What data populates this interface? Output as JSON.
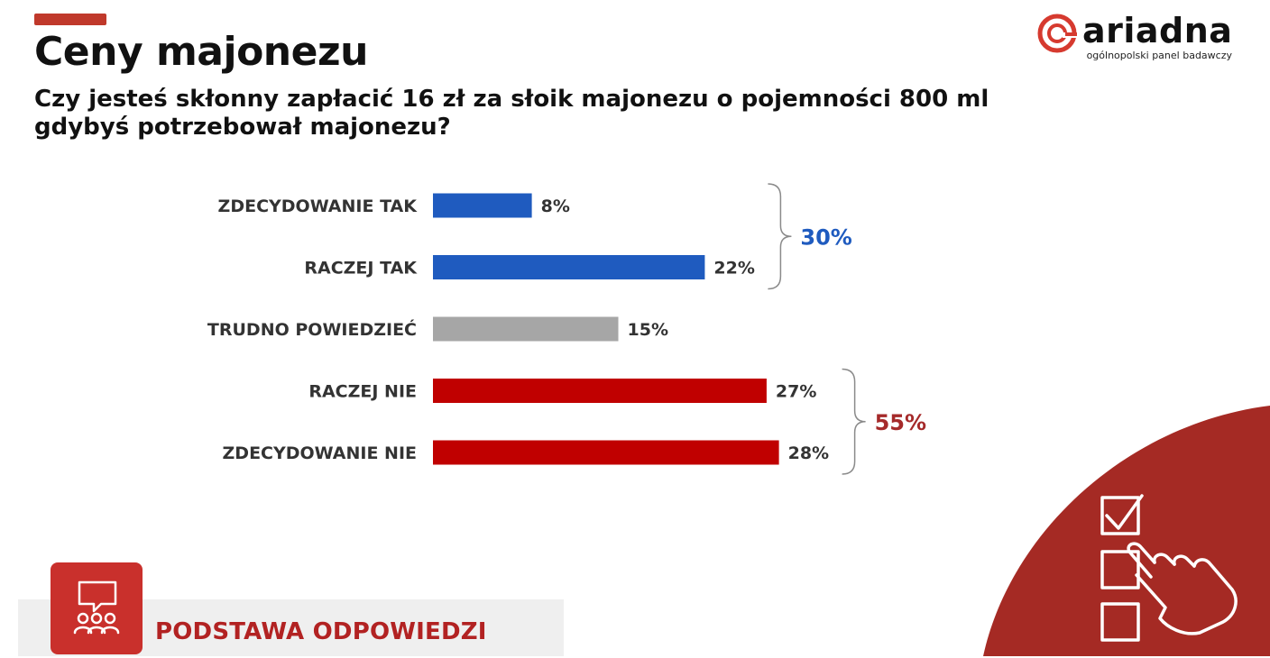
{
  "title": "Ceny majonezu",
  "question": "Czy jesteś skłonny zapłacić 16 zł za słoik majonezu o pojemności 800 ml gdybyś potrzebował majonezu?",
  "logo": {
    "brand": "ariadna",
    "tagline": "ogólnopolski panel badawczy"
  },
  "footer": {
    "label": "PODSTAWA ODPOWIEDZI"
  },
  "chart_data": {
    "type": "bar",
    "orientation": "horizontal",
    "categories": [
      "ZDECYDOWANIE TAK",
      "RACZEJ TAK",
      "TRUDNO POWIEDZIEĆ",
      "RACZEJ NIE",
      "ZDECYDOWANIE NIE"
    ],
    "values": [
      8,
      22,
      15,
      27,
      28
    ],
    "value_labels": [
      "8%",
      "22%",
      "15%",
      "27%",
      "28%"
    ],
    "colors": [
      "#1f5bbf",
      "#1f5bbf",
      "#a6a6a6",
      "#c00000",
      "#c00000"
    ],
    "xlim": [
      0,
      100
    ],
    "unit": "%",
    "groups": [
      {
        "label": "30%",
        "members": [
          0,
          1
        ],
        "color": "#1f5bbf"
      },
      {
        "label": "55%",
        "members": [
          3,
          4
        ],
        "color": "#a52a2a"
      }
    ],
    "colors_theme": {
      "accent": "#c0392b",
      "corner": "#a52a24",
      "label": "#333333"
    }
  }
}
